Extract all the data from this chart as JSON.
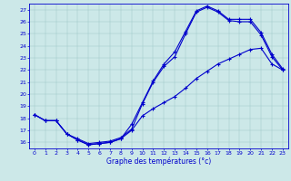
{
  "xlabel": "Graphe des températures (°c)",
  "bg_color": "#cce8e8",
  "line_color": "#0000cc",
  "ylim": [
    15.5,
    27.5
  ],
  "xlim": [
    -0.5,
    23.5
  ],
  "yticks": [
    16,
    17,
    18,
    19,
    20,
    21,
    22,
    23,
    24,
    25,
    26,
    27
  ],
  "xticks": [
    0,
    1,
    2,
    3,
    4,
    5,
    6,
    7,
    8,
    9,
    10,
    11,
    12,
    13,
    14,
    15,
    16,
    17,
    18,
    19,
    20,
    21,
    22,
    23
  ],
  "curve1_x": [
    0,
    1,
    2,
    3,
    4,
    5,
    6,
    7,
    8,
    9,
    10,
    11,
    12,
    13,
    14,
    15,
    16,
    17,
    18,
    19,
    20,
    21,
    22,
    23
  ],
  "curve1_y": [
    18.3,
    17.8,
    17.8,
    16.7,
    16.3,
    15.9,
    16.0,
    16.1,
    16.4,
    17.1,
    19.2,
    21.0,
    22.3,
    23.1,
    25.0,
    26.8,
    27.2,
    26.8,
    26.1,
    26.0,
    26.0,
    24.9,
    23.1,
    22.0
  ],
  "curve2_x": [
    0,
    1,
    2,
    3,
    4,
    5,
    6,
    7,
    8,
    9,
    10,
    11,
    12,
    13,
    14,
    15,
    16,
    17,
    18,
    19,
    20,
    21,
    22,
    23
  ],
  "curve2_y": [
    18.3,
    17.8,
    17.8,
    16.7,
    16.2,
    15.8,
    15.9,
    16.0,
    16.3,
    17.5,
    19.3,
    21.1,
    22.5,
    23.5,
    25.2,
    26.9,
    27.3,
    26.9,
    26.2,
    26.2,
    26.2,
    25.1,
    23.3,
    22.1
  ],
  "curve3_x": [
    0,
    1,
    2,
    3,
    4,
    5,
    6,
    7,
    8,
    9,
    10,
    11,
    12,
    13,
    14,
    15,
    16,
    17,
    18,
    19,
    20,
    21,
    22,
    23
  ],
  "curve3_y": [
    18.3,
    17.8,
    17.8,
    16.7,
    16.2,
    15.8,
    15.9,
    16.0,
    16.3,
    17.0,
    18.2,
    18.8,
    19.3,
    19.8,
    20.5,
    21.3,
    21.9,
    22.5,
    22.9,
    23.3,
    23.7,
    23.8,
    22.5,
    22.0
  ]
}
